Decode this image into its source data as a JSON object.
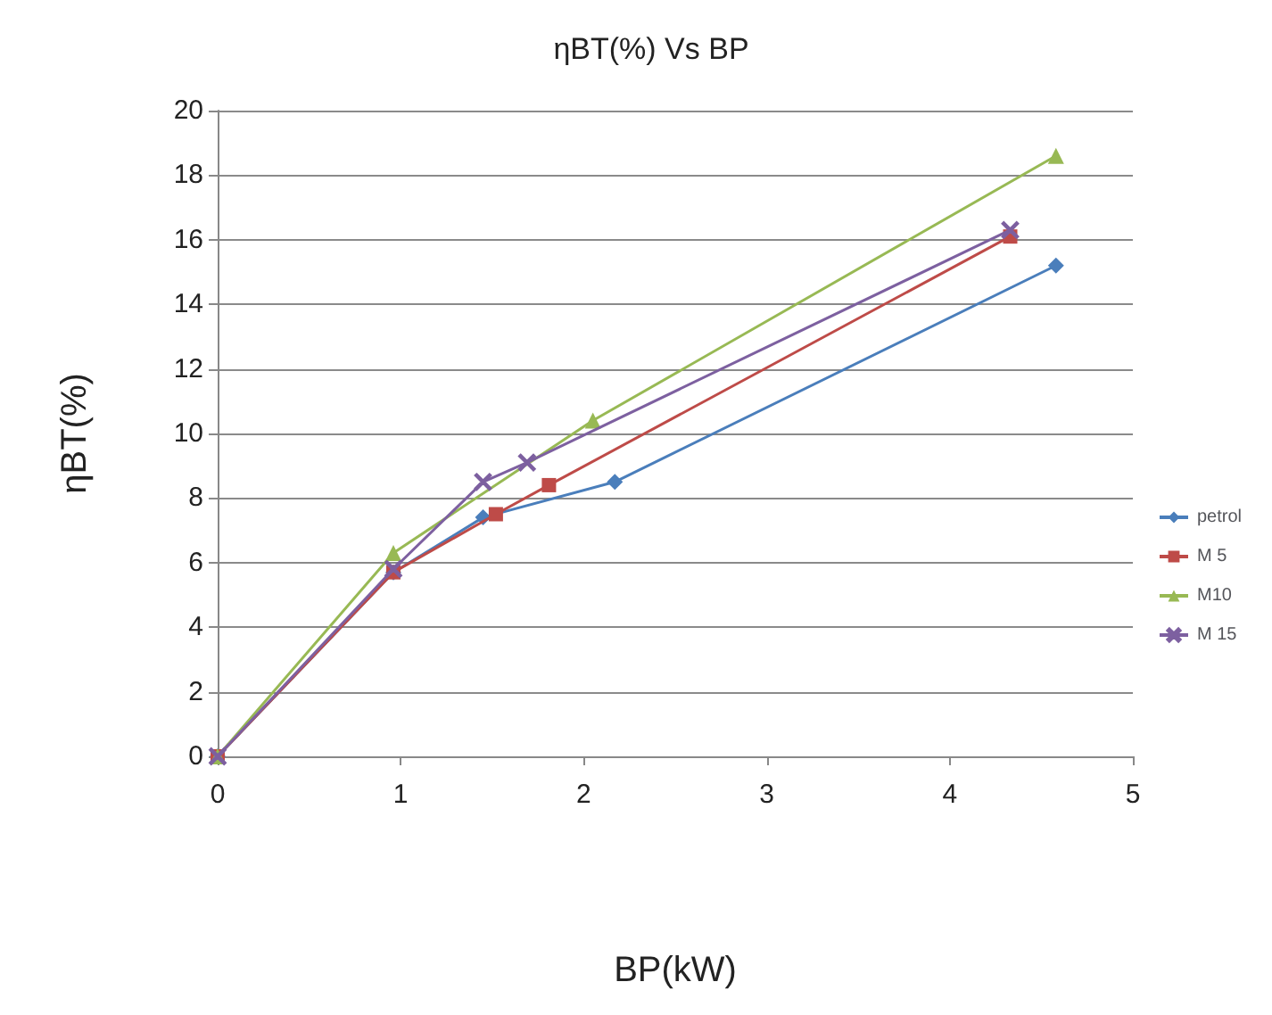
{
  "chart_data": {
    "type": "line",
    "title": "ηBT(%) Vs BP",
    "xlabel": "BP(kW)",
    "ylabel": "ηBT(%)",
    "xlim": [
      0,
      5
    ],
    "xticks": [
      0,
      1,
      2,
      3,
      4,
      5
    ],
    "ylim": [
      0,
      20
    ],
    "yticks": [
      0,
      2,
      4,
      6,
      8,
      10,
      12,
      14,
      16,
      18,
      20
    ],
    "grid": "y",
    "legend": "right",
    "series": [
      {
        "name": "petrol",
        "color": "#4a7ebb",
        "marker": "diamond",
        "x": [
          0,
          0.96,
          1.45,
          2.17,
          4.58
        ],
        "values": [
          0,
          5.7,
          7.4,
          8.5,
          15.2
        ]
      },
      {
        "name": "M 5",
        "color": "#be4b48",
        "marker": "square",
        "x": [
          0,
          0.96,
          1.52,
          1.81,
          4.33
        ],
        "values": [
          0,
          5.7,
          7.5,
          8.4,
          16.1
        ]
      },
      {
        "name": "M10",
        "color": "#98b954",
        "marker": "triangle",
        "x": [
          0,
          0.96,
          2.05,
          4.58
        ],
        "values": [
          0,
          6.3,
          10.4,
          18.6
        ]
      },
      {
        "name": "M 15",
        "color": "#7d60a0",
        "marker": "cross",
        "x": [
          0,
          0.96,
          1.45,
          1.69,
          4.33
        ],
        "values": [
          0,
          5.8,
          8.5,
          9.1,
          16.3
        ]
      }
    ]
  }
}
